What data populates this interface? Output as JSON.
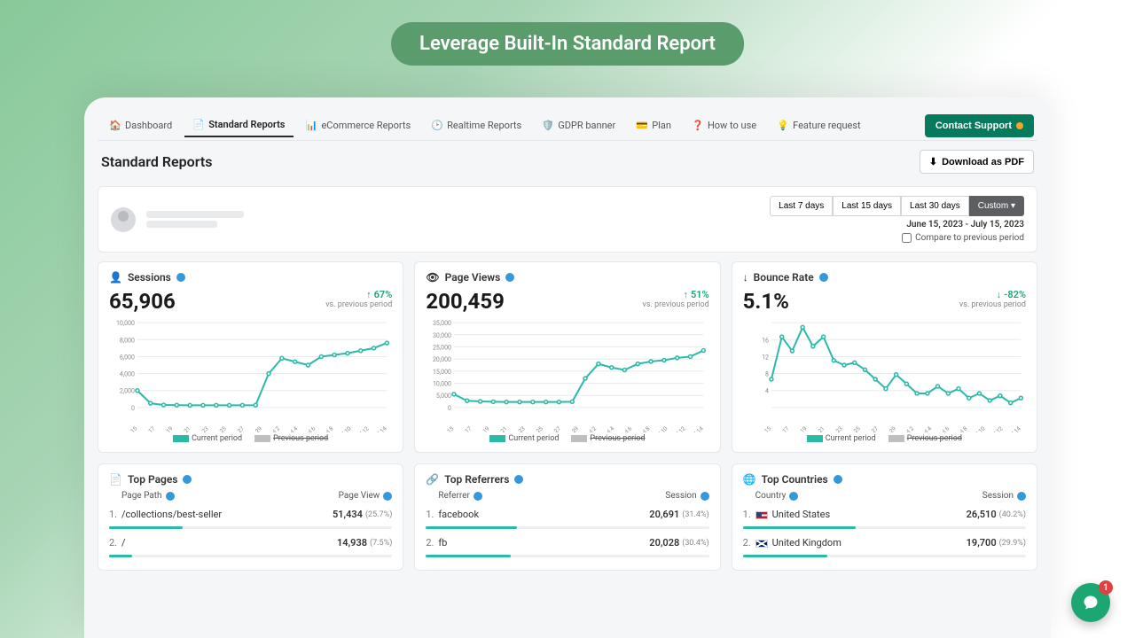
{
  "hero": {
    "title": "Leverage Built-In Standard Report"
  },
  "nav": {
    "items": [
      {
        "label": "Dashboard",
        "icon": "home"
      },
      {
        "label": "Standard Reports",
        "icon": "report",
        "active": true
      },
      {
        "label": "eCommerce Reports",
        "icon": "bars"
      },
      {
        "label": "Realtime Reports",
        "icon": "clock"
      },
      {
        "label": "GDPR banner",
        "icon": "shield"
      },
      {
        "label": "Plan",
        "icon": "card"
      },
      {
        "label": "How to use",
        "icon": "help"
      },
      {
        "label": "Feature request",
        "icon": "bulb"
      }
    ],
    "contact_label": "Contact Support"
  },
  "page": {
    "title": "Standard Reports",
    "download_label": "Download as PDF",
    "ranges": [
      "Last 7 days",
      "Last 15 days",
      "Last 30 days",
      "Custom ▾"
    ],
    "active_range_idx": 3,
    "date_range": "June 15, 2023 - July 15, 2023",
    "compare_label": "Compare to previous period"
  },
  "charts": {
    "x_labels": [
      "Jun 15",
      "Jun 17",
      "Jun 19",
      "Jun 21",
      "Jun 23",
      "Jun 25",
      "Jun 27",
      "Jun 29",
      "Jul 2",
      "Jul 4",
      "Jul 6",
      "Jul 8",
      "Jul 10",
      "Jul 12",
      "Jul 14"
    ],
    "line_color": "#2bb9a8",
    "point_color": "#2bb9a8",
    "grid_color": "#e8eaec",
    "text_color": "#888",
    "legend": {
      "current": "Current period",
      "previous": "Previous period"
    },
    "sessions": {
      "title": "Sessions",
      "value": "65,906",
      "delta": "67%",
      "delta_dir": "up",
      "sub": "vs. previous period",
      "y_ticks": [
        "0",
        "2,000",
        "4,000",
        "6,000",
        "8,000",
        "10,000"
      ],
      "y_max": 10000,
      "points": [
        2000,
        500,
        300,
        280,
        260,
        260,
        260,
        260,
        270,
        280,
        4000,
        5800,
        5400,
        5000,
        6000,
        6200,
        6400,
        6700,
        7000,
        7600
      ]
    },
    "pageviews": {
      "title": "Page Views",
      "value": "200,459",
      "delta": "51%",
      "delta_dir": "up",
      "sub": "vs. previous period",
      "y_ticks": [
        "0",
        "5,000",
        "10,000",
        "15,000",
        "20,000",
        "25,000",
        "30,000",
        "35,000"
      ],
      "y_max": 35000,
      "points": [
        5500,
        2800,
        2500,
        2400,
        2300,
        2300,
        2300,
        2300,
        2300,
        2400,
        12000,
        18000,
        16500,
        15500,
        18000,
        19000,
        19500,
        20500,
        21000,
        23500
      ]
    },
    "bounce": {
      "title": "Bounce Rate",
      "value": "5.1%",
      "delta": "-82%",
      "delta_dir": "down",
      "sub": "vs. previous period",
      "y_ticks": [
        "",
        "4",
        "8",
        "12",
        "16",
        ""
      ],
      "y_max": 18,
      "points": [
        6,
        15,
        12,
        17,
        13,
        15,
        10,
        9,
        9.5,
        8,
        6,
        4,
        7,
        5,
        3,
        3,
        4.5,
        3,
        4,
        2,
        3,
        1.5,
        2.5,
        1,
        2
      ]
    }
  },
  "tables": {
    "pages": {
      "title": "Top Pages",
      "col1": "Page Path",
      "col2": "Page View",
      "rows": [
        {
          "name": "/collections/best-seller",
          "val": "51,434",
          "pct": "(25.7%)",
          "bar": 26
        },
        {
          "name": "/",
          "val": "14,938",
          "pct": "(7.5%)",
          "bar": 8
        }
      ]
    },
    "referrers": {
      "title": "Top Referrers",
      "col1": "Referrer",
      "col2": "Session",
      "rows": [
        {
          "name": "facebook",
          "val": "20,691",
          "pct": "(31.4%)",
          "bar": 32
        },
        {
          "name": "fb",
          "val": "20,028",
          "pct": "(30.4%)",
          "bar": 30
        }
      ]
    },
    "countries": {
      "title": "Top Countries",
      "col1": "Country",
      "col2": "Session",
      "rows": [
        {
          "name": "United States",
          "val": "26,510",
          "pct": "(40.2%)",
          "bar": 40,
          "flag": "us"
        },
        {
          "name": "United Kingdom",
          "val": "19,700",
          "pct": "(29.9%)",
          "bar": 30,
          "flag": "uk"
        }
      ]
    }
  },
  "chat": {
    "badge": "1"
  }
}
